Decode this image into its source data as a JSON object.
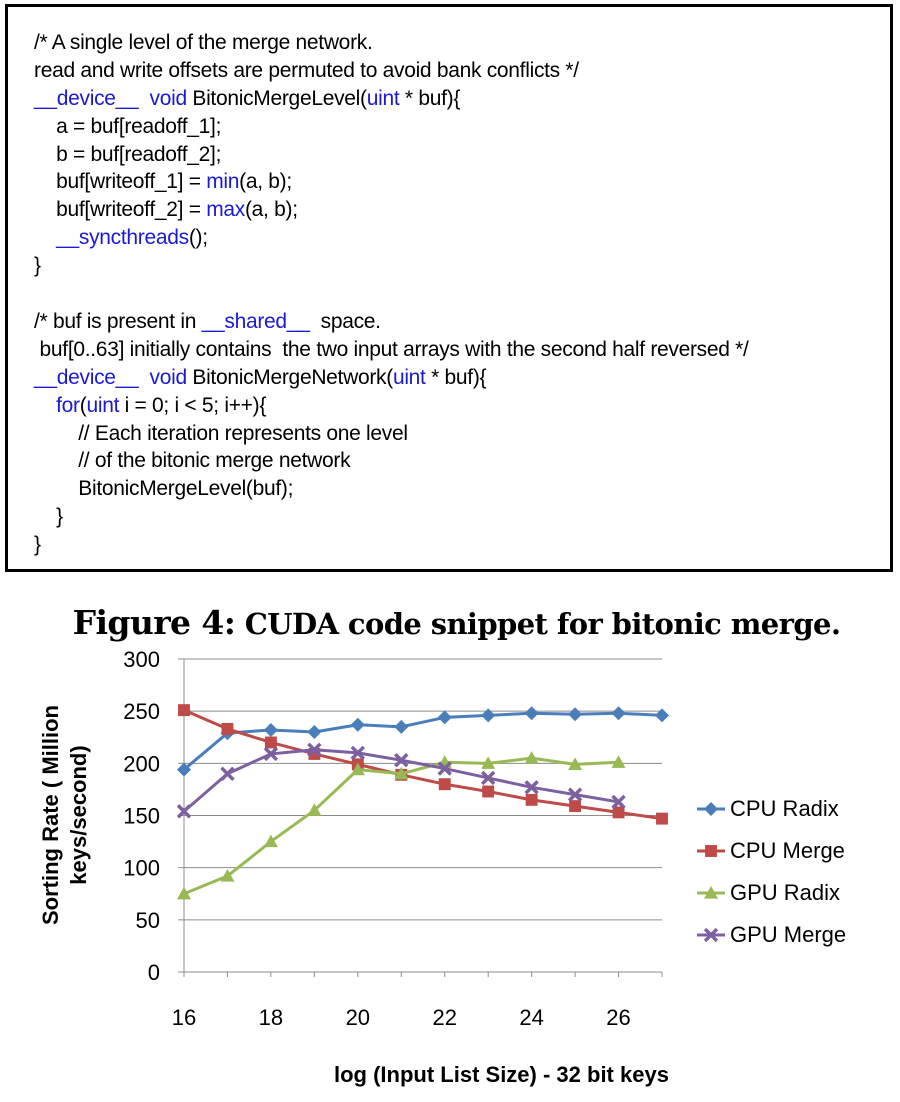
{
  "code": {
    "lines": [
      [
        {
          "t": "/* A single level of the merge network.",
          "k": false
        }
      ],
      [
        {
          "t": "read and write offsets are permuted to avoid bank conflicts */",
          "k": false
        }
      ],
      [
        {
          "t": "__device__",
          "k": true
        },
        {
          "t": "  ",
          "k": false
        },
        {
          "t": "void",
          "k": true
        },
        {
          "t": " BitonicMergeLevel(",
          "k": false
        },
        {
          "t": "uint",
          "k": true
        },
        {
          "t": " * buf){",
          "k": false
        }
      ],
      [
        {
          "t": "    a = buf[readoff_1];",
          "k": false
        }
      ],
      [
        {
          "t": "    b = buf[readoff_2];",
          "k": false
        }
      ],
      [
        {
          "t": "    buf[writeoff_1] = ",
          "k": false
        },
        {
          "t": "min",
          "k": true
        },
        {
          "t": "(a, b);",
          "k": false
        }
      ],
      [
        {
          "t": "    buf[writeoff_2] = ",
          "k": false
        },
        {
          "t": "max",
          "k": true
        },
        {
          "t": "(a, b);",
          "k": false
        }
      ],
      [
        {
          "t": "    ",
          "k": false
        },
        {
          "t": "__syncthreads",
          "k": true
        },
        {
          "t": "();",
          "k": false
        }
      ],
      [
        {
          "t": "}",
          "k": false
        }
      ],
      [
        {
          "t": "",
          "k": false
        }
      ],
      [
        {
          "t": "/* buf is present in ",
          "k": false
        },
        {
          "t": "__shared__",
          "k": true
        },
        {
          "t": "  space.",
          "k": false
        }
      ],
      [
        {
          "t": " buf[0..63] initially contains  the two input arrays with the second half reversed */",
          "k": false
        }
      ],
      [
        {
          "t": "__device__",
          "k": true
        },
        {
          "t": "  ",
          "k": false
        },
        {
          "t": "void",
          "k": true
        },
        {
          "t": " BitonicMergeNetwork(",
          "k": false
        },
        {
          "t": "uint",
          "k": true
        },
        {
          "t": " * buf){",
          "k": false
        }
      ],
      [
        {
          "t": "    ",
          "k": false
        },
        {
          "t": "for",
          "k": true
        },
        {
          "t": "(",
          "k": false
        },
        {
          "t": "uint",
          "k": true
        },
        {
          "t": " i = 0; i < 5; i++){",
          "k": false
        }
      ],
      [
        {
          "t": "        // Each iteration represents one level",
          "k": false
        }
      ],
      [
        {
          "t": "        // of the bitonic merge network",
          "k": false
        }
      ],
      [
        {
          "t": "        BitonicMergeLevel(buf);",
          "k": false
        }
      ],
      [
        {
          "t": "    }",
          "k": false
        }
      ],
      [
        {
          "t": "}",
          "k": false
        }
      ]
    ]
  },
  "caption": {
    "label": "Figure 4:",
    "text": "CUDA code snippet for bitonic merge."
  },
  "chart_data": {
    "type": "line",
    "xlabel": "log (Input List Size) - 32 bit keys",
    "ylabel_lines": [
      "Sorting Rate ( Million",
      "keys/second)"
    ],
    "xlim": [
      16,
      27
    ],
    "ylim": [
      0,
      300
    ],
    "x_ticks": [
      16,
      18,
      20,
      22,
      24,
      26
    ],
    "y_ticks": [
      0,
      50,
      100,
      150,
      200,
      250,
      300
    ],
    "grid": "horizontal",
    "legend_position": "right",
    "series": [
      {
        "name": "CPU Radix",
        "color": "#4a7ebb",
        "marker": "diamond",
        "x": [
          16,
          17,
          18,
          19,
          20,
          21,
          22,
          23,
          24,
          25,
          26,
          27
        ],
        "y": [
          194,
          229,
          232,
          230,
          237,
          235,
          244,
          246,
          248,
          247,
          248,
          246
        ]
      },
      {
        "name": "CPU Merge",
        "color": "#be4b48",
        "marker": "square",
        "x": [
          16,
          17,
          18,
          19,
          20,
          21,
          22,
          23,
          24,
          25,
          26,
          27
        ],
        "y": [
          251,
          233,
          220,
          209,
          199,
          189,
          180,
          173,
          165,
          159,
          153,
          147
        ]
      },
      {
        "name": "GPU Radix",
        "color": "#98b954",
        "marker": "triangle",
        "x": [
          16,
          17,
          18,
          19,
          20,
          21,
          22,
          23,
          24,
          25,
          26
        ],
        "y": [
          75,
          92,
          125,
          155,
          194,
          190,
          201,
          200,
          205,
          199,
          201
        ]
      },
      {
        "name": "GPU Merge",
        "color": "#7d60a0",
        "marker": "x",
        "x": [
          16,
          17,
          18,
          19,
          20,
          21,
          22,
          23,
          24,
          25,
          26
        ],
        "y": [
          154,
          190,
          209,
          213,
          210,
          203,
          195,
          186,
          177,
          170,
          163
        ]
      }
    ]
  }
}
